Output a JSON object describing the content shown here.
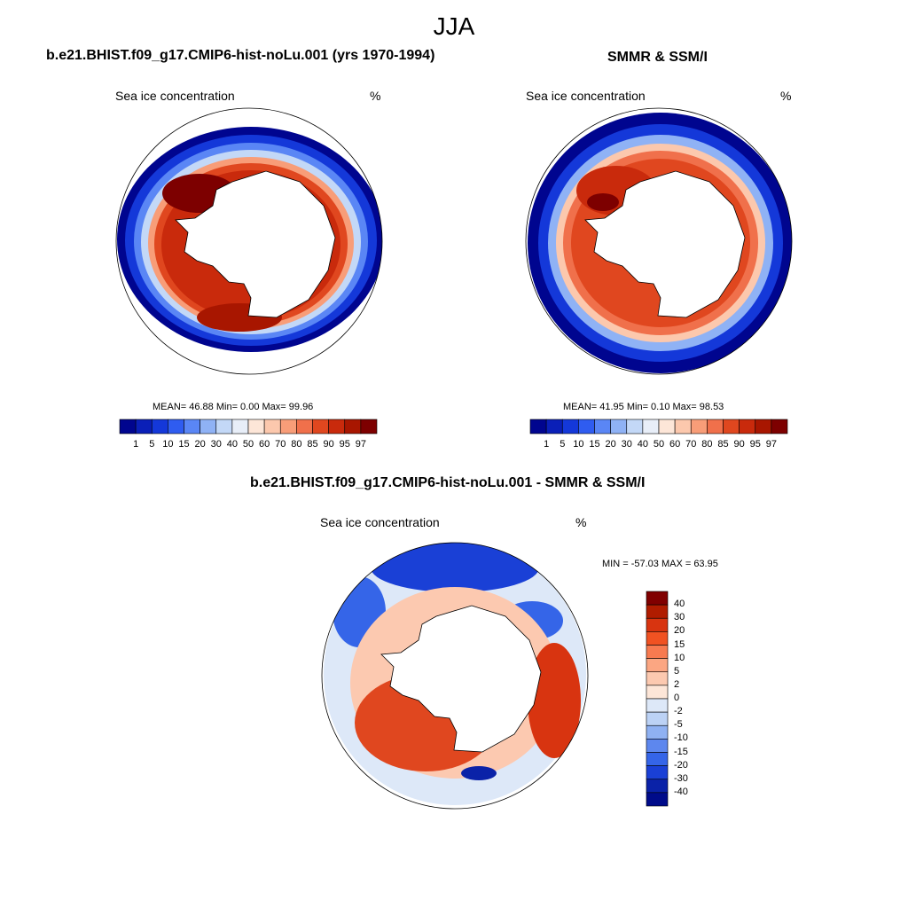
{
  "figure": {
    "title": "JJA"
  },
  "panels": [
    {
      "title": "b.e21.BHIST.f09_g17.CMIP6-hist-noLu.001 (yrs 1970-1994)",
      "subtitle_left": "Sea ice concentration",
      "subtitle_right": "%",
      "stats": "MEAN=  46.88  Min=    0.00  Max=  99.96"
    },
    {
      "title": "SMMR & SSM/I",
      "subtitle_left": "Sea ice concentration",
      "subtitle_right": "%",
      "stats": "MEAN=  41.95  Min=    0.10  Max=  98.53"
    },
    {
      "title": "b.e21.BHIST.f09_g17.CMIP6-hist-noLu.001 - SMMR & SSM/I",
      "subtitle_left": "Sea ice concentration",
      "subtitle_right": "%",
      "stats": "MIN = -57.03 MAX =  63.95"
    }
  ],
  "colorbar_conc": {
    "labels": [
      "1",
      "5",
      "10",
      "15",
      "20",
      "30",
      "40",
      "50",
      "60",
      "70",
      "80",
      "85",
      "90",
      "95",
      "97"
    ],
    "colors": [
      "#00058f",
      "#0a1fb8",
      "#1438d9",
      "#2f5cf0",
      "#5a86f5",
      "#8fb2f5",
      "#c3d8f7",
      "#e8eef8",
      "#fde6d8",
      "#fcc8ad",
      "#f89d78",
      "#f0704b",
      "#e0471f",
      "#c92a0c",
      "#a81600",
      "#7d0000"
    ]
  },
  "colorbar_diff": {
    "labels": [
      "40",
      "30",
      "20",
      "15",
      "10",
      "5",
      "2",
      "0",
      "-2",
      "-5",
      "-10",
      "-15",
      "-20",
      "-30",
      "-40"
    ],
    "colors": [
      "#800000",
      "#b01c00",
      "#d83410",
      "#f05222",
      "#f77a50",
      "#fba682",
      "#fcc9b0",
      "#fde6d8",
      "#dde8f8",
      "#bcd2f5",
      "#8fb1f2",
      "#5d87ee",
      "#3565e8",
      "#1a40d6",
      "#0a22a8",
      "#000b8a"
    ]
  }
}
